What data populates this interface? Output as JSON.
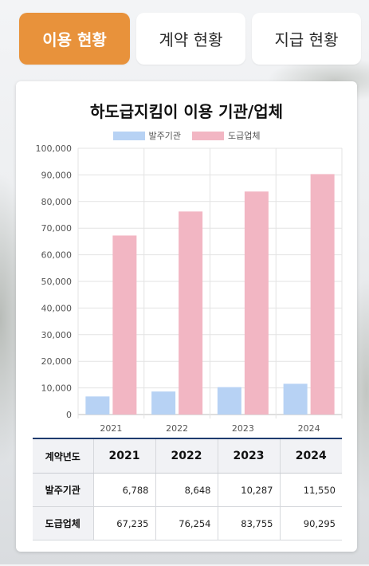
{
  "tabs": [
    {
      "label": "이용 현황",
      "active": true
    },
    {
      "label": "계약 현황",
      "active": false
    },
    {
      "label": "지급 현황",
      "active": false
    }
  ],
  "colors": {
    "accent": "#e8923b",
    "series_client": "#b7d2f4",
    "series_sub": "#f2b6c3",
    "table_border": "#1f3b6e"
  },
  "chart_data": {
    "type": "bar",
    "title": "하도급지킴이 이용 기관/업체",
    "categories": [
      "2021",
      "2022",
      "2023",
      "2024"
    ],
    "series": [
      {
        "name": "발주기관",
        "values": [
          6788,
          8648,
          10287,
          11550
        ]
      },
      {
        "name": "도급업체",
        "values": [
          67235,
          76254,
          83755,
          90295
        ]
      }
    ],
    "ylim": [
      0,
      100000
    ],
    "yticks": [
      "0",
      "10,000",
      "20,000",
      "30,000",
      "40,000",
      "50,000",
      "60,000",
      "70,000",
      "80,000",
      "90,000",
      "100,000"
    ],
    "grid": true,
    "legend": "top-center"
  },
  "table": {
    "headers": [
      "계약년도",
      "2021",
      "2022",
      "2023",
      "2024"
    ],
    "rows": [
      {
        "label": "발주기관",
        "values": [
          "6,788",
          "8,648",
          "10,287",
          "11,550"
        ]
      },
      {
        "label": "도급업체",
        "values": [
          "67,235",
          "76,254",
          "83,755",
          "90,295"
        ]
      }
    ]
  }
}
